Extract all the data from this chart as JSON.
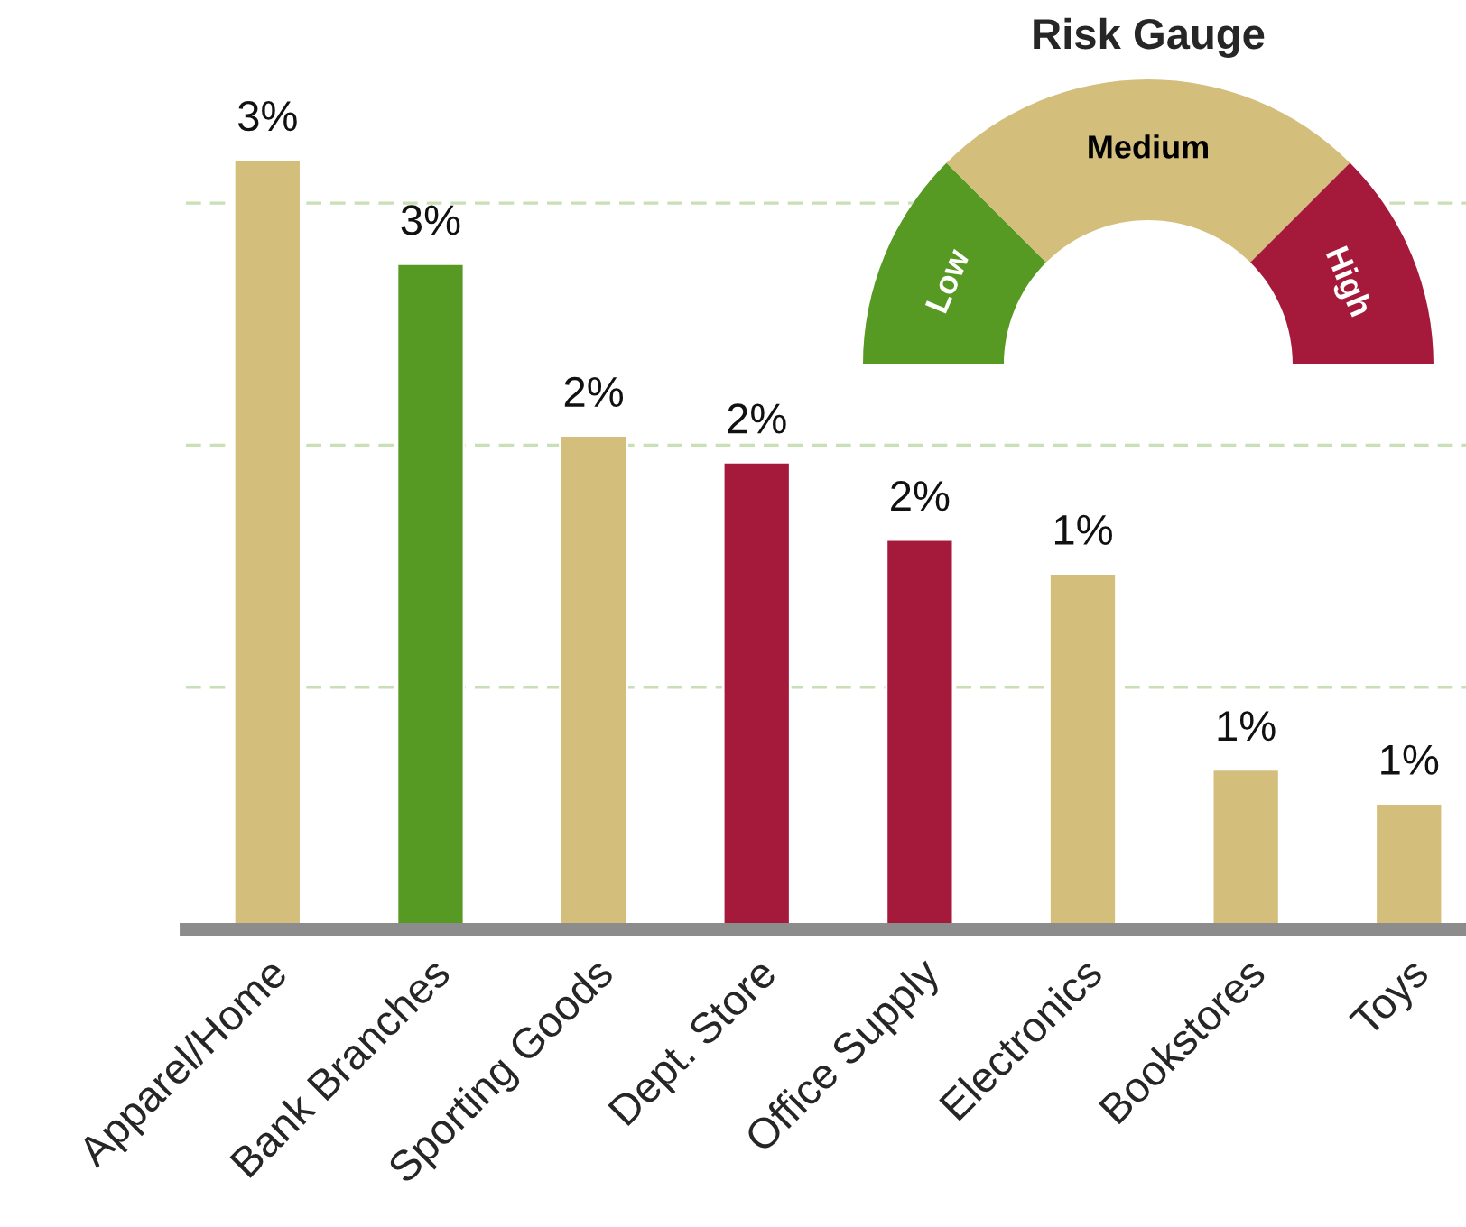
{
  "chart_data": [
    {
      "type": "bar",
      "categories": [
        "Apparel/Home",
        "Bank Branches",
        "Sporting Goods",
        "Dept. Store",
        "Office Supply",
        "Electronics",
        "Bookstores",
        "Toys"
      ],
      "values": [
        3.18,
        2.75,
        2.04,
        1.93,
        1.61,
        1.47,
        0.66,
        0.52
      ],
      "colors": [
        "#d4be7c",
        "#579a23",
        "#d4be7c",
        "#a51a3b",
        "#a51a3b",
        "#d4be7c",
        "#d4be7c",
        "#d4be7c"
      ],
      "value_labels": [
        "3%",
        "3%",
        "2%",
        "2%",
        "2%",
        "1%",
        "1%",
        "1%"
      ],
      "ref_lines": [
        {
          "axis": "y",
          "value": 1,
          "color": "#c9e0b6",
          "line_style": "dashed"
        },
        {
          "axis": "y",
          "value": 2,
          "color": "#c9e0b6",
          "line_style": "dashed"
        },
        {
          "axis": "y",
          "value": 3,
          "color": "#c9e0b6",
          "line_style": "dashed"
        }
      ],
      "tick_labels": "x",
      "legend": false
    },
    {
      "type": "donut",
      "title": "Risk Gauge",
      "categories": [
        "Low",
        "Medium",
        "High"
      ],
      "values": [
        25,
        50,
        25
      ],
      "colors": [
        "#579a23",
        "#d4be7c",
        "#a51a3b"
      ],
      "legend": false
    }
  ]
}
